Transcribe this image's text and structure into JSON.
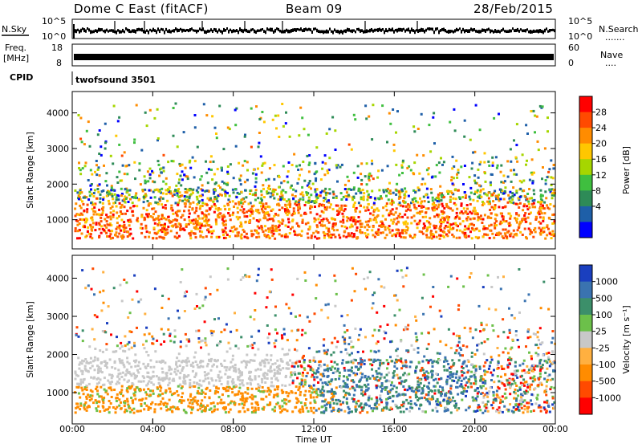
{
  "header": {
    "station": "Dome C East (fitACF)",
    "beam": "Beam 09",
    "date": "28/Feb/2015"
  },
  "top_panels": {
    "nsky_label": "N.Sky",
    "nsky_ticks": [
      "10^5",
      "10^0"
    ],
    "nsearch_label": "N.Search",
    "nsearch_ticks": [
      "10^5",
      "10^0"
    ],
    "nsearch_dots": ".......",
    "freq_label_1": "Freq.",
    "freq_label_2": "[MHz]",
    "freq_ticks": [
      "18",
      "8"
    ],
    "nave_label": "Nave",
    "nave_ticks": [
      "60",
      "0"
    ],
    "nave_dots": "....",
    "cpid_label": "CPID",
    "cpid_value": "twofsound 3501"
  },
  "chart_data": [
    {
      "type": "heatmap",
      "name": "power",
      "ylabel": "Slant Range [km]",
      "y_ticks": [
        1000,
        2000,
        3000,
        4000
      ],
      "ylim": [
        180,
        4600
      ],
      "colorbar_label": "Power [dB]",
      "colorbar_ticks": [
        "28",
        "24",
        "20",
        "16",
        "12",
        "8",
        "4"
      ],
      "colorbar_colors": [
        "#ff0000",
        "#ff4a00",
        "#ff8c00",
        "#ffc700",
        "#a6d600",
        "#3fbf3f",
        "#2e8b57",
        "#1e5fa8",
        "#0000ff"
      ]
    },
    {
      "type": "heatmap",
      "name": "velocity",
      "ylabel": "Slant Range [km]",
      "y_ticks": [
        1000,
        2000,
        3000,
        4000
      ],
      "ylim": [
        180,
        4600
      ],
      "colorbar_label": "Velocity [m s⁻¹]",
      "colorbar_ticks": [
        "1000",
        "500",
        "100",
        "25",
        "-25",
        "-100",
        "-500",
        "-1000"
      ],
      "colorbar_colors": [
        "#1a3fbf",
        "#3a73b0",
        "#3c8f6a",
        "#6cc04a",
        "#c8c8c8",
        "#ffb040",
        "#ff8c00",
        "#ff4a00",
        "#ff0000"
      ]
    }
  ],
  "time_axis": {
    "label": "Time UT",
    "ticks": [
      "00:00",
      "04:00",
      "08:00",
      "12:00",
      "16:00",
      "20:00",
      "00:00"
    ]
  }
}
